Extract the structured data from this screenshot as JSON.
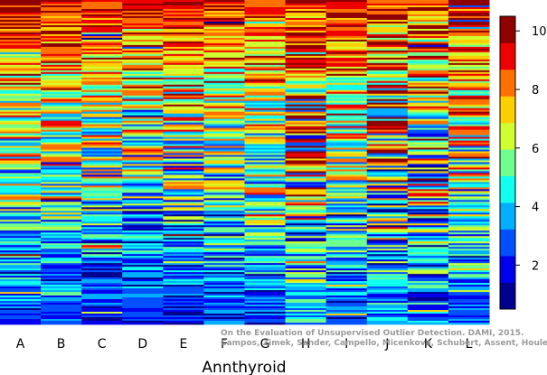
{
  "chart_data": {
    "type": "heatmap",
    "title": "",
    "xlabel": "Annthyroid",
    "ylabel": "",
    "columns": [
      "A",
      "B",
      "C",
      "D",
      "E",
      "F",
      "G",
      "H",
      "I",
      "J",
      "K",
      "L"
    ],
    "colorbar": {
      "min": 0.5,
      "max": 10.5,
      "ticks": [
        2,
        4,
        6,
        8,
        10
      ],
      "levels": 10,
      "colors": [
        "#00008f",
        "#0000ef",
        "#0050ff",
        "#00afff",
        "#10ffef",
        "#6fff8f",
        "#cfff30",
        "#ffcf00",
        "#ff7000",
        "#ef0000",
        "#8f0000"
      ]
    },
    "column_profile": {
      "note_free_values": true,
      "top_rank_mean": [
        10,
        10,
        10,
        10,
        10,
        9.5,
        9.5,
        9,
        10,
        9.5,
        9.5,
        10
      ],
      "bottom_rank_mean": [
        2,
        2,
        1.5,
        1.5,
        1.5,
        2,
        2,
        4,
        2,
        3,
        2.5,
        2.5
      ]
    }
  },
  "watermark": {
    "line1": "On the Evaluation of Unsupervised Outlier Detection. DAMI, 2015.",
    "line2": "Campos, Zimek, Sander, Campello, Micenkova, Schubert, Assent, Houle"
  }
}
